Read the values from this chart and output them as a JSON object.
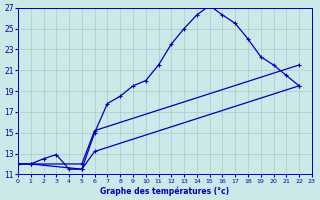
{
  "xlabel": "Graphe des températures (°c)",
  "background_color": "#cce8e8",
  "grid_color": "#aacccc",
  "line_color": "#0000bb",
  "xlim": [
    0,
    23
  ],
  "ylim": [
    11,
    27
  ],
  "yticks": [
    11,
    13,
    15,
    17,
    19,
    21,
    23,
    25,
    27
  ],
  "xticks": [
    0,
    1,
    2,
    3,
    4,
    5,
    6,
    7,
    8,
    9,
    10,
    11,
    12,
    13,
    14,
    15,
    16,
    17,
    18,
    19,
    20,
    21,
    22,
    23
  ],
  "line1_x": [
    0,
    1,
    2,
    3,
    4,
    5,
    6,
    7,
    8,
    9,
    10,
    11,
    12,
    13,
    14,
    15,
    16,
    17,
    18,
    19,
    20,
    21,
    22
  ],
  "line1_y": [
    12.0,
    12.0,
    12.5,
    12.9,
    11.5,
    11.5,
    15.0,
    17.8,
    18.5,
    19.5,
    20.0,
    21.5,
    23.5,
    25.0,
    26.3,
    27.2,
    26.3,
    25.5,
    24.0,
    22.3,
    21.5,
    20.5,
    19.5
  ],
  "line2_x": [
    0,
    1,
    5,
    6,
    22
  ],
  "line2_y": [
    12.0,
    12.0,
    12.0,
    15.2,
    21.5
  ],
  "line3_x": [
    0,
    1,
    5,
    6,
    22
  ],
  "line3_y": [
    12.0,
    12.0,
    11.5,
    13.2,
    19.5
  ]
}
